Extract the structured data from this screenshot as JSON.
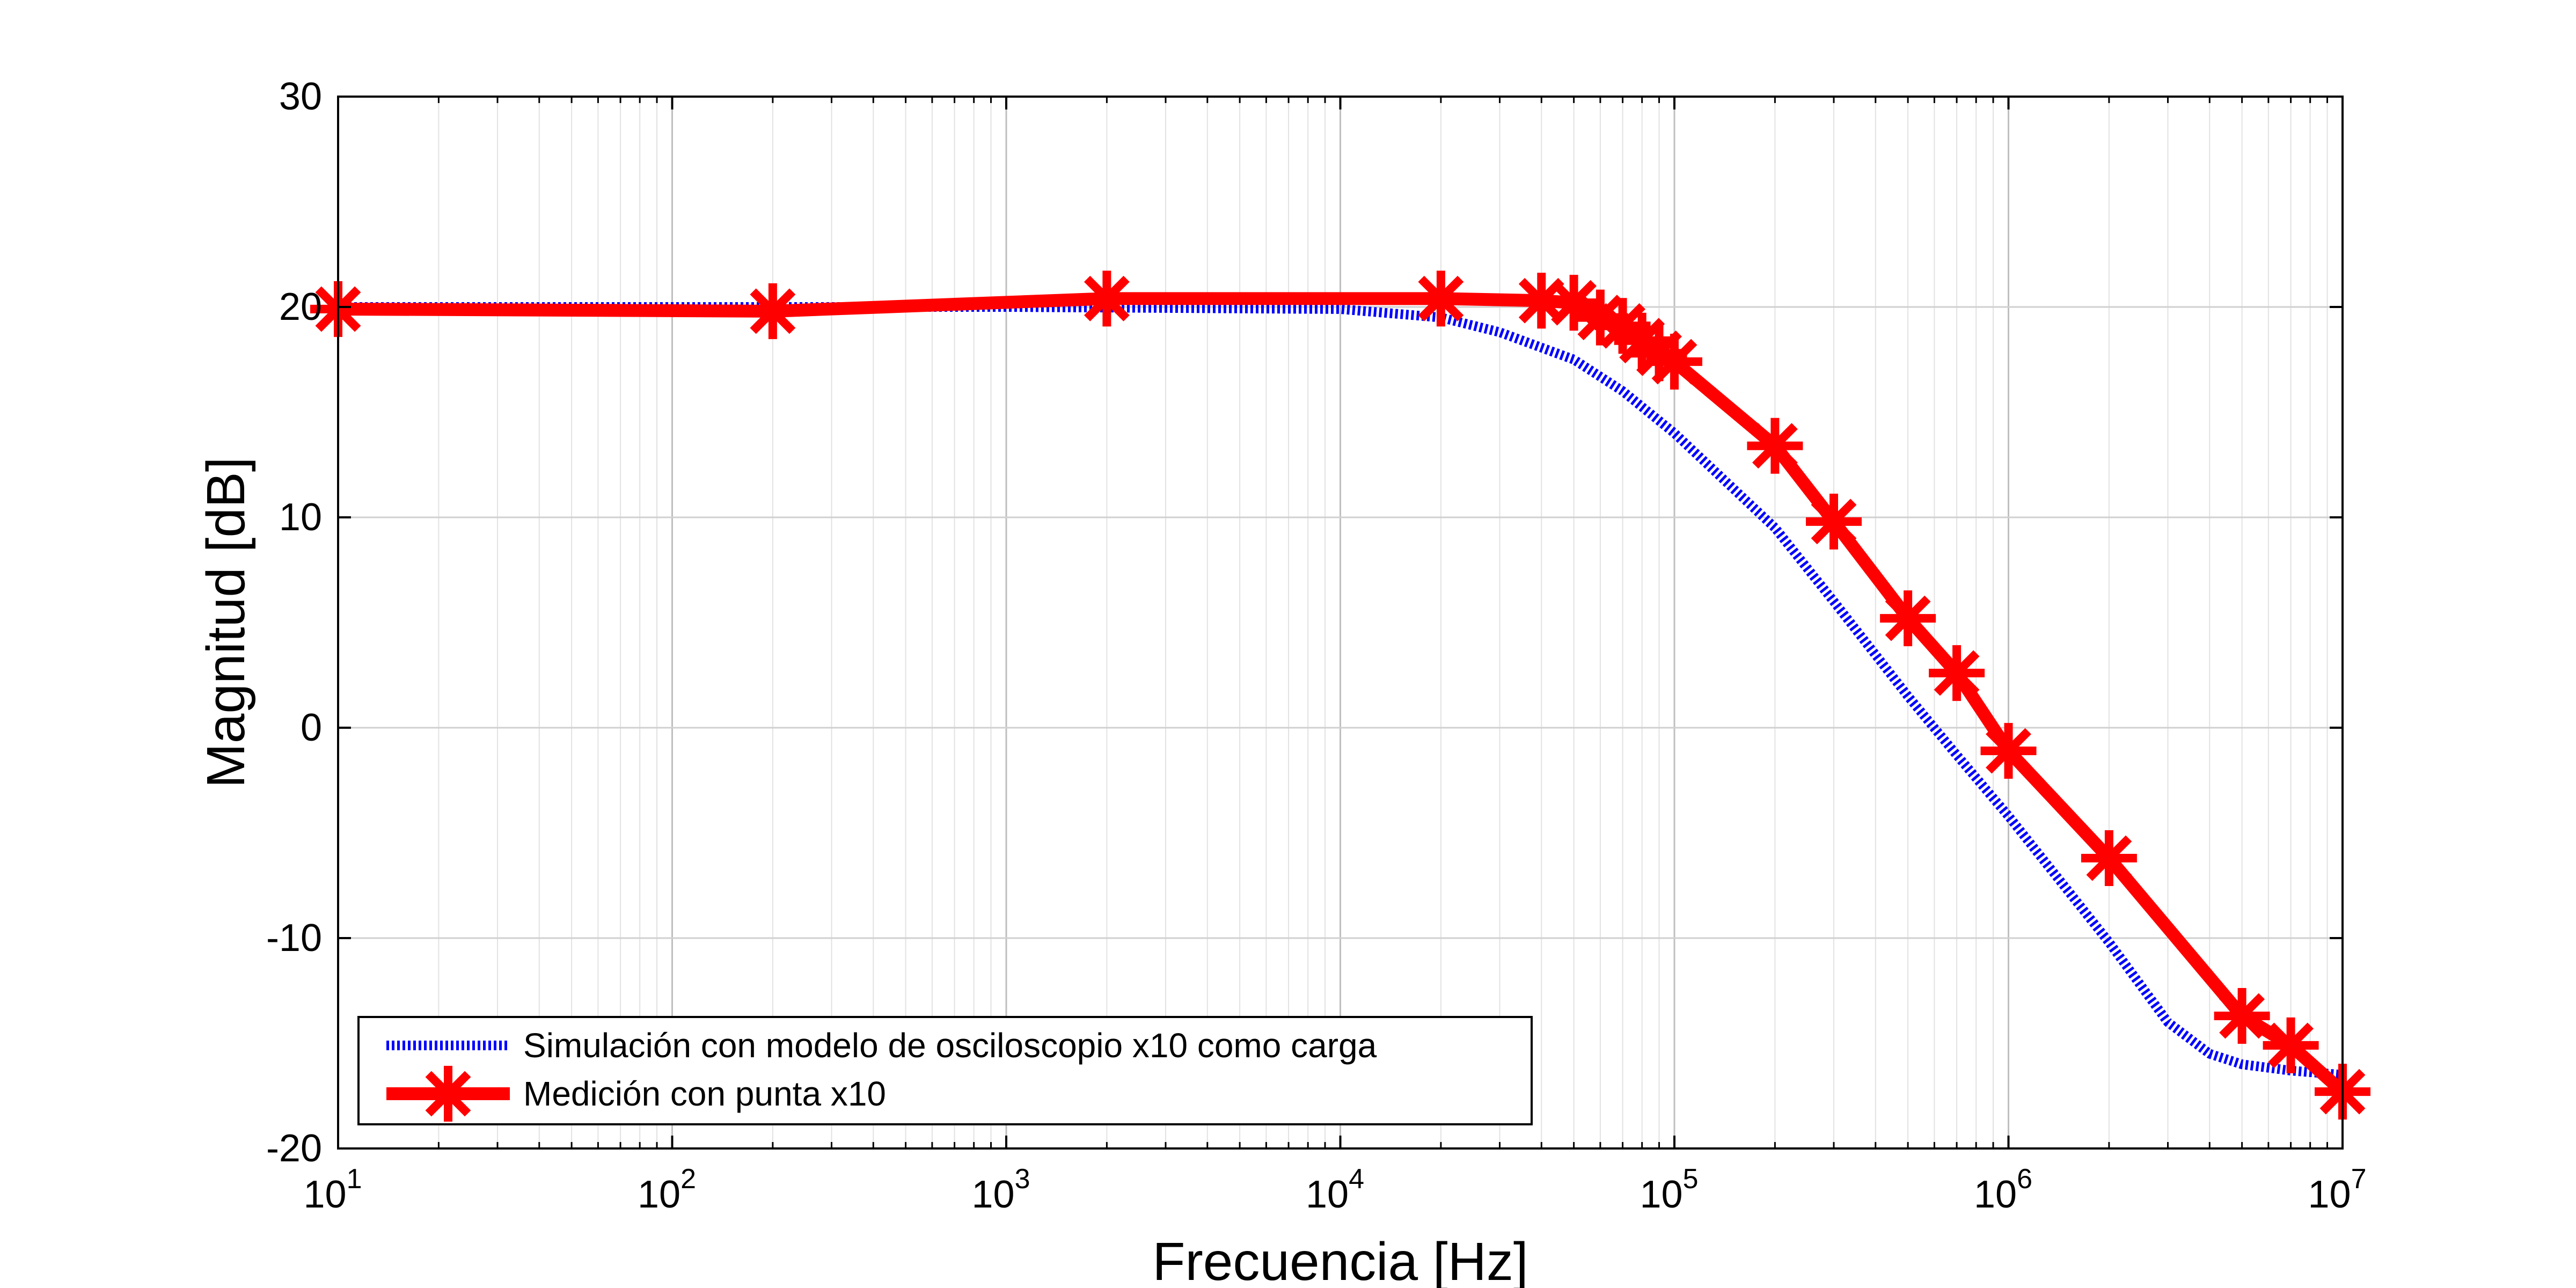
{
  "chart_data": {
    "type": "line",
    "title": "",
    "xlabel": "Frecuencia [Hz]",
    "ylabel": "Magnitud [dB]",
    "xscale": "log",
    "xlim": [
      10,
      10000000
    ],
    "ylim": [
      -20,
      30
    ],
    "grid": true,
    "legend_position": "bottom-left",
    "x_tick_exponents": [
      "1",
      "2",
      "3",
      "4",
      "5",
      "6",
      "7"
    ],
    "x_tick_base": "10",
    "y_ticks": [
      -20,
      -10,
      0,
      10,
      20,
      30
    ],
    "y_tick_labels": [
      "-20",
      "-10",
      "0",
      "10",
      "20",
      "30"
    ],
    "series": [
      {
        "name": "Simulación con modelo de osciloscopio x10 como carga",
        "color": "#0000ff",
        "style": "dotted",
        "x": [
          10,
          100,
          1000,
          10000,
          20000,
          30000,
          50000,
          70000,
          100000,
          200000,
          300000,
          500000,
          700000,
          1000000,
          2000000,
          3000000,
          4000000,
          5000000,
          7000000,
          10000000
        ],
        "y": [
          20,
          20,
          20,
          19.9,
          19.5,
          18.8,
          17.5,
          16,
          14,
          9.5,
          6,
          1.5,
          -1.3,
          -4.2,
          -10.2,
          -14,
          -15.5,
          -16,
          -16.3,
          -16.5
        ]
      },
      {
        "name": "Medición con punta x10",
        "color": "#ff0000",
        "style": "solid",
        "marker": "asterisk",
        "x": [
          10,
          200,
          2000,
          20000,
          40000,
          50000,
          60000,
          70000,
          80000,
          90000,
          100000,
          200000,
          300000,
          500000,
          700000,
          1000000,
          2000000,
          5000000,
          7000000,
          10000000
        ],
        "y": [
          19.9,
          19.8,
          20.4,
          20.4,
          20.3,
          20.2,
          19.5,
          19.1,
          18.4,
          17.8,
          17.4,
          13.4,
          9.8,
          5.2,
          2.6,
          -1.1,
          -6.2,
          -13.7,
          -15.1,
          -17.3
        ]
      }
    ]
  }
}
